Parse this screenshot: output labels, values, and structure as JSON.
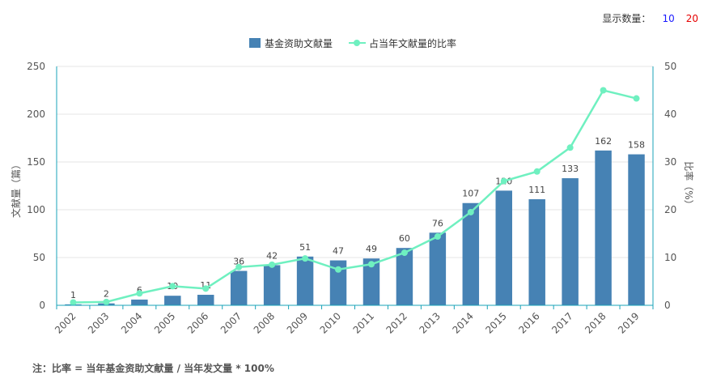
{
  "display_count": {
    "label": "显示数量：",
    "options": [
      {
        "text": "10",
        "color": "#1a1aff"
      },
      {
        "text": "20",
        "color": "#e60000"
      }
    ]
  },
  "footnote": "注：比率 = 当年基金资助文献量 / 当年发文量 * 100%",
  "colors": {
    "bar": "#4682b4",
    "line": "#6ff0c0",
    "axis": "#1aa3b8",
    "grid": "#e5e5e5"
  },
  "chart_data": {
    "type": "bar",
    "categories": [
      "2002",
      "2003",
      "2004",
      "2005",
      "2006",
      "2007",
      "2008",
      "2009",
      "2010",
      "2011",
      "2012",
      "2013",
      "2014",
      "2015",
      "2016",
      "2017",
      "2018",
      "2019"
    ],
    "series": [
      {
        "name": "基金资助文献量",
        "type": "bar",
        "axis": "left",
        "values": [
          1,
          2,
          6,
          10,
          11,
          36,
          42,
          51,
          47,
          49,
          60,
          76,
          107,
          120,
          111,
          133,
          162,
          158
        ]
      },
      {
        "name": "占当年文献量的比率",
        "type": "line",
        "axis": "right",
        "values": [
          0.6,
          0.7,
          2.5,
          4.0,
          3.5,
          8.0,
          8.5,
          9.8,
          7.5,
          8.6,
          11.0,
          14.4,
          19.5,
          26.0,
          28.0,
          33.0,
          45.0,
          43.3
        ]
      }
    ],
    "ylabel": "文献量（篇）",
    "y2label": "比率（%）",
    "ylim": [
      0,
      250
    ],
    "y2lim": [
      0,
      50
    ],
    "yticks": [
      0,
      50,
      100,
      150,
      200,
      250
    ],
    "y2ticks": [
      0,
      10,
      20,
      30,
      40,
      50
    ],
    "legend": "top-center",
    "grid": true
  }
}
